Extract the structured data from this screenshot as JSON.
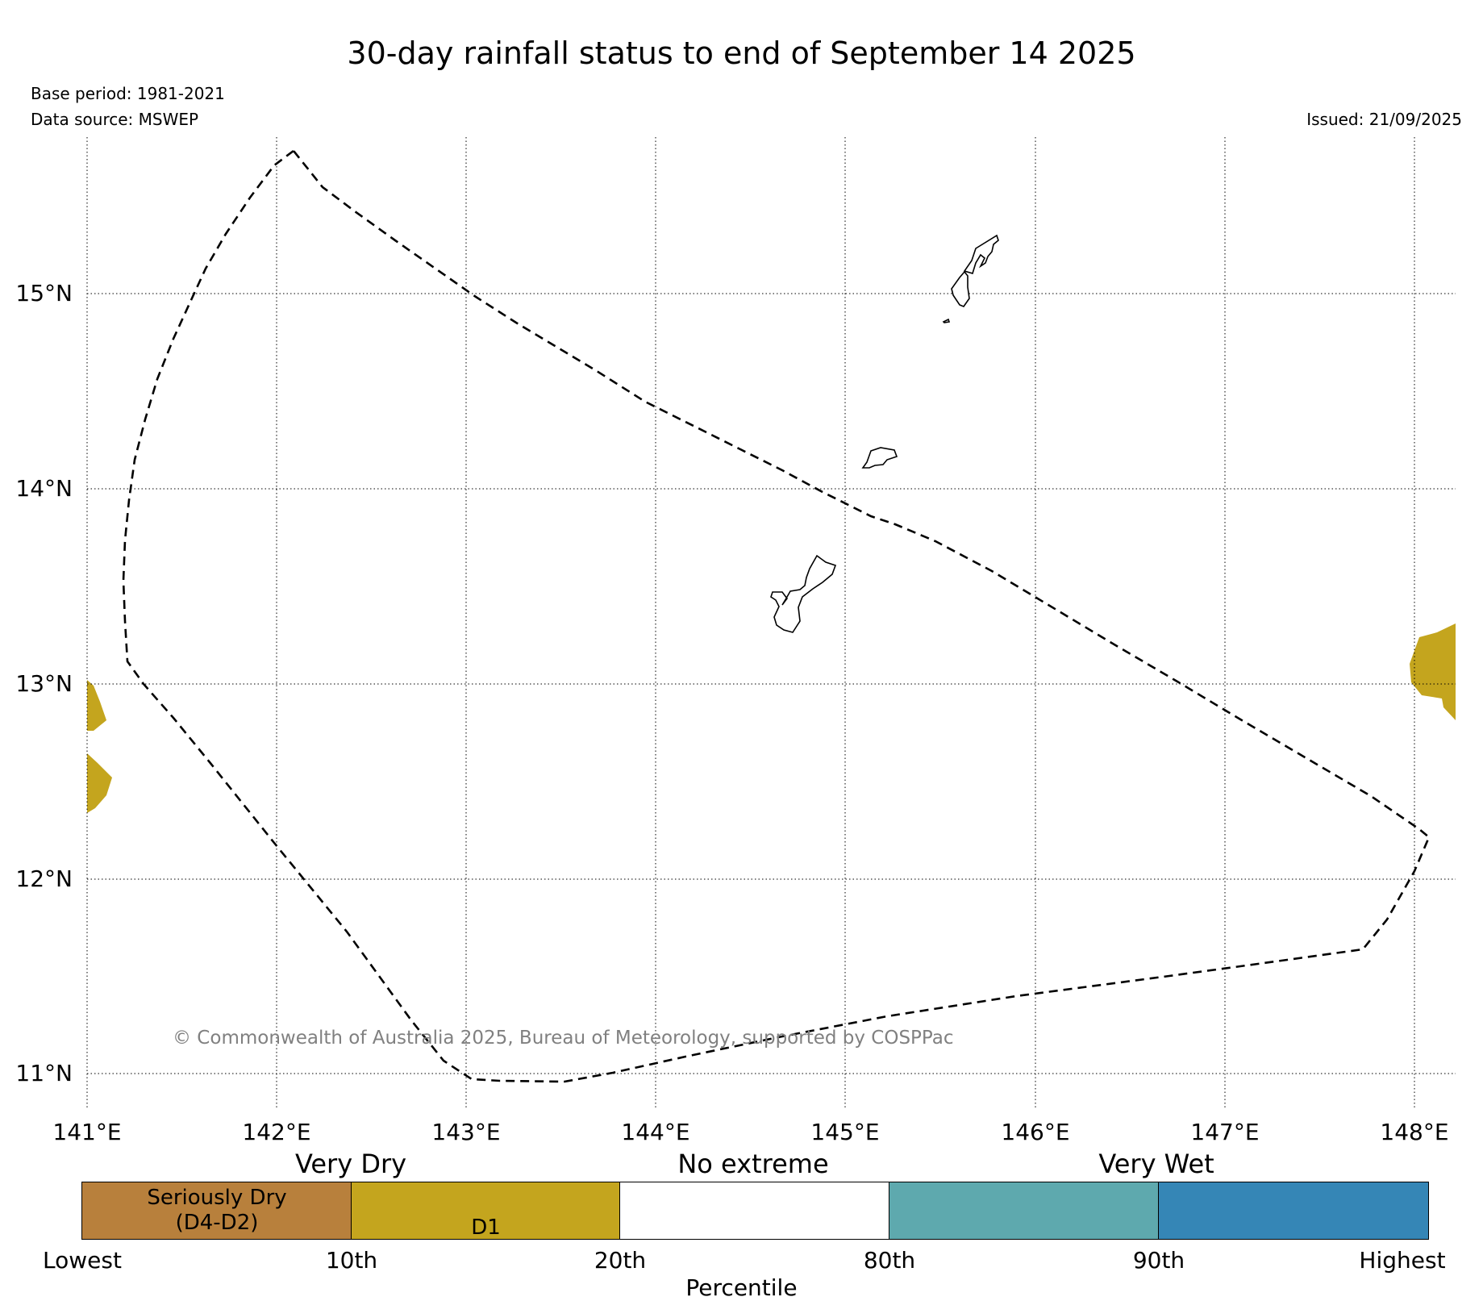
{
  "title": "30-day rainfall status to end of September 14 2025",
  "base_period": "Base period: 1981-2021",
  "data_source": "Data source: MSWEP",
  "issued": "Issued: 21/09/2025",
  "copyright": "© Commonwealth of Australia 2025, Bureau of Meteorology, supported by COSPPac",
  "map": {
    "lon_labels": [
      "141°E",
      "142°E",
      "143°E",
      "144°E",
      "145°E",
      "146°E",
      "147°E",
      "148°E"
    ],
    "lat_labels": [
      "15°N",
      "14°N",
      "13°N",
      "12°N",
      "11°N"
    ],
    "colors": {
      "d1": "#c4a51e",
      "boundary": "#000000",
      "land_fill": "#ffffff"
    },
    "features": [
      "EEZ boundary (dashed)",
      "Guam",
      "Rota",
      "Aguijan",
      "Tinian",
      "Saipan",
      "D1 rainfall areas"
    ]
  },
  "legend": {
    "groups": [
      "Very Dry",
      "No extreme",
      "Very Wet"
    ],
    "categories": [
      {
        "label_line1": "Seriously Dry",
        "label_line2": "(D4-D2)",
        "color": "#b8803c"
      },
      {
        "label_line1": "D1",
        "label_line2": "",
        "color": "#c4a51e"
      },
      {
        "label_line1": "",
        "label_line2": "",
        "color": "#ffffff"
      },
      {
        "label_line1": "",
        "label_line2": "",
        "color": "#5ea9ae"
      },
      {
        "label_line1": "",
        "label_line2": "",
        "color": "#3586b6"
      }
    ],
    "ticks": [
      "Lowest",
      "10th",
      "20th",
      "80th",
      "90th",
      "Highest"
    ],
    "axis_label": "Percentile"
  }
}
